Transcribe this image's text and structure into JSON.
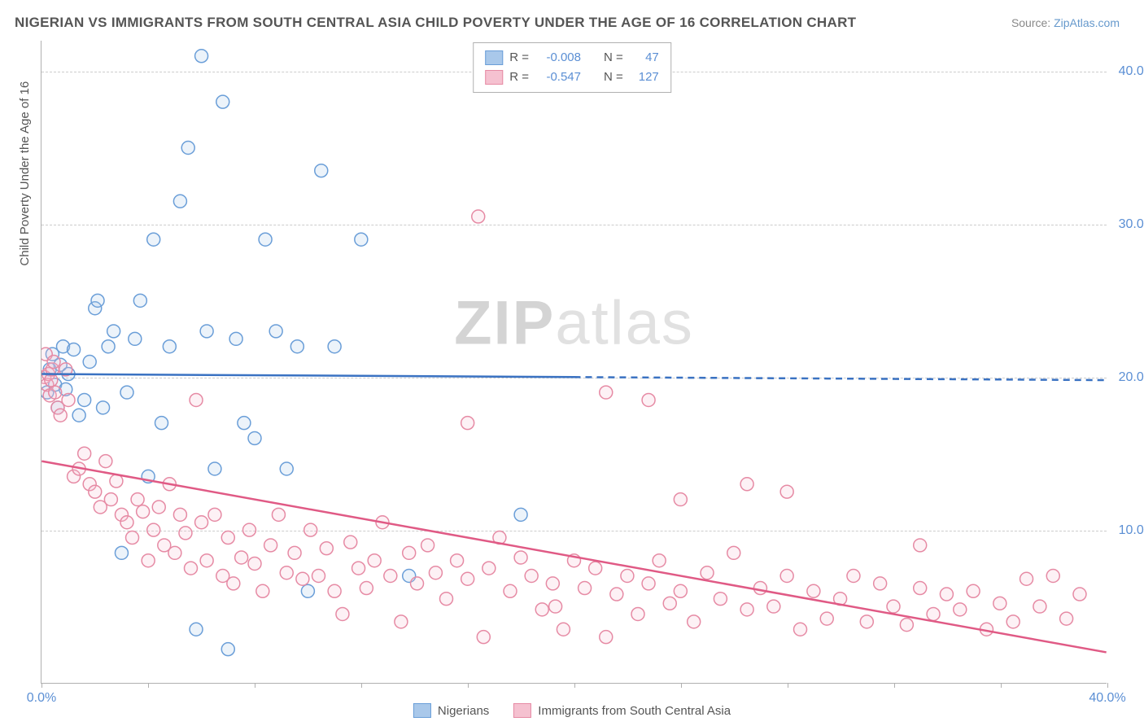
{
  "title": "NIGERIAN VS IMMIGRANTS FROM SOUTH CENTRAL ASIA CHILD POVERTY UNDER THE AGE OF 16 CORRELATION CHART",
  "source_label": "Source:",
  "source_name": "ZipAtlas.com",
  "y_axis_label": "Child Poverty Under the Age of 16",
  "watermark": {
    "zip": "ZIP",
    "rest": "atlas"
  },
  "chart": {
    "type": "scatter",
    "xlim": [
      0,
      40
    ],
    "ylim": [
      0,
      42
    ],
    "x_ticks": [
      0,
      4,
      8,
      12,
      16,
      20,
      24,
      28,
      32,
      36,
      40
    ],
    "x_tick_labels": {
      "0": "0.0%",
      "40": "40.0%"
    },
    "y_gridlines": [
      10,
      20,
      30,
      40
    ],
    "y_tick_labels": {
      "10": "10.0%",
      "20": "20.0%",
      "30": "30.0%",
      "40": "40.0%"
    },
    "background_color": "#ffffff",
    "grid_color": "#cccccc",
    "axis_color": "#b0b0b0",
    "tick_label_color": "#5b8fd4",
    "marker_radius": 8,
    "marker_stroke_width": 1.5,
    "marker_fill_opacity": 0.22,
    "series": [
      {
        "name": "Nigerians",
        "color_stroke": "#6a9ed8",
        "color_fill": "#a9c8ea",
        "r_label": "R =",
        "r_value": "-0.008",
        "n_label": "N =",
        "n_value": "47",
        "regression": {
          "color": "#3a72c2",
          "width": 2.5,
          "solid_x_range": [
            0,
            20
          ],
          "solid_y_range": [
            20.2,
            20.0
          ],
          "dashed_x_range": [
            20,
            40
          ],
          "dashed_y_range": [
            20.0,
            19.8
          ]
        },
        "points": [
          [
            0.2,
            19
          ],
          [
            0.3,
            20.5
          ],
          [
            0.4,
            21.5
          ],
          [
            0.5,
            19.5
          ],
          [
            0.6,
            18
          ],
          [
            0.7,
            20.8
          ],
          [
            0.8,
            22
          ],
          [
            0.9,
            19.2
          ],
          [
            1.0,
            20.2
          ],
          [
            1.2,
            21.8
          ],
          [
            1.4,
            17.5
          ],
          [
            1.6,
            18.5
          ],
          [
            1.8,
            21
          ],
          [
            2.0,
            24.5
          ],
          [
            2.1,
            25
          ],
          [
            2.3,
            18
          ],
          [
            2.5,
            22
          ],
          [
            2.7,
            23
          ],
          [
            3.0,
            8.5
          ],
          [
            3.2,
            19
          ],
          [
            3.5,
            22.5
          ],
          [
            3.7,
            25
          ],
          [
            4.0,
            13.5
          ],
          [
            4.2,
            29
          ],
          [
            4.5,
            17
          ],
          [
            4.8,
            22
          ],
          [
            5.2,
            31.5
          ],
          [
            5.5,
            35
          ],
          [
            5.8,
            3.5
          ],
          [
            6.0,
            41
          ],
          [
            6.2,
            23
          ],
          [
            6.5,
            14
          ],
          [
            6.8,
            38
          ],
          [
            7.0,
            2.2
          ],
          [
            7.3,
            22.5
          ],
          [
            7.6,
            17
          ],
          [
            8.0,
            16
          ],
          [
            8.4,
            29
          ],
          [
            8.8,
            23
          ],
          [
            9.2,
            14
          ],
          [
            9.6,
            22
          ],
          [
            10.0,
            6
          ],
          [
            10.5,
            33.5
          ],
          [
            11.0,
            22
          ],
          [
            12.0,
            29
          ],
          [
            13.8,
            7
          ],
          [
            18.0,
            11
          ]
        ]
      },
      {
        "name": "Immigrants from South Central Asia",
        "color_stroke": "#e68aa4",
        "color_fill": "#f5c1d0",
        "r_label": "R =",
        "r_value": "-0.547",
        "n_label": "N =",
        "n_value": "127",
        "regression": {
          "color": "#e05a85",
          "width": 2.5,
          "solid_x_range": [
            0,
            40
          ],
          "solid_y_range": [
            14.5,
            2.0
          ],
          "dashed_x_range": null,
          "dashed_y_range": null
        },
        "points": [
          [
            0.1,
            20
          ],
          [
            0.15,
            21.5
          ],
          [
            0.2,
            19.5
          ],
          [
            0.25,
            20.2
          ],
          [
            0.3,
            18.8
          ],
          [
            0.35,
            19.8
          ],
          [
            0.4,
            20.5
          ],
          [
            0.45,
            21
          ],
          [
            0.5,
            19
          ],
          [
            0.6,
            18
          ],
          [
            0.7,
            17.5
          ],
          [
            0.9,
            20.5
          ],
          [
            1.0,
            18.5
          ],
          [
            1.2,
            13.5
          ],
          [
            1.4,
            14
          ],
          [
            1.6,
            15
          ],
          [
            1.8,
            13
          ],
          [
            2.0,
            12.5
          ],
          [
            2.2,
            11.5
          ],
          [
            2.4,
            14.5
          ],
          [
            2.6,
            12
          ],
          [
            2.8,
            13.2
          ],
          [
            3.0,
            11
          ],
          [
            3.2,
            10.5
          ],
          [
            3.4,
            9.5
          ],
          [
            3.6,
            12
          ],
          [
            3.8,
            11.2
          ],
          [
            4.0,
            8
          ],
          [
            4.2,
            10
          ],
          [
            4.4,
            11.5
          ],
          [
            4.6,
            9
          ],
          [
            4.8,
            13
          ],
          [
            5.0,
            8.5
          ],
          [
            5.2,
            11
          ],
          [
            5.4,
            9.8
          ],
          [
            5.6,
            7.5
          ],
          [
            5.8,
            18.5
          ],
          [
            6.0,
            10.5
          ],
          [
            6.2,
            8
          ],
          [
            6.5,
            11
          ],
          [
            6.8,
            7
          ],
          [
            7.0,
            9.5
          ],
          [
            7.2,
            6.5
          ],
          [
            7.5,
            8.2
          ],
          [
            7.8,
            10
          ],
          [
            8.0,
            7.8
          ],
          [
            8.3,
            6
          ],
          [
            8.6,
            9
          ],
          [
            8.9,
            11
          ],
          [
            9.2,
            7.2
          ],
          [
            9.5,
            8.5
          ],
          [
            9.8,
            6.8
          ],
          [
            10.1,
            10
          ],
          [
            10.4,
            7
          ],
          [
            10.7,
            8.8
          ],
          [
            11.0,
            6
          ],
          [
            11.3,
            4.5
          ],
          [
            11.6,
            9.2
          ],
          [
            11.9,
            7.5
          ],
          [
            12.2,
            6.2
          ],
          [
            12.5,
            8
          ],
          [
            12.8,
            10.5
          ],
          [
            13.1,
            7
          ],
          [
            13.5,
            4
          ],
          [
            13.8,
            8.5
          ],
          [
            14.1,
            6.5
          ],
          [
            14.5,
            9
          ],
          [
            14.8,
            7.2
          ],
          [
            15.2,
            5.5
          ],
          [
            15.6,
            8
          ],
          [
            16.0,
            17
          ],
          [
            16.0,
            6.8
          ],
          [
            16.4,
            30.5
          ],
          [
            16.6,
            3
          ],
          [
            16.8,
            7.5
          ],
          [
            17.2,
            9.5
          ],
          [
            17.6,
            6
          ],
          [
            18.0,
            8.2
          ],
          [
            18.4,
            7
          ],
          [
            18.8,
            4.8
          ],
          [
            19.2,
            6.5
          ],
          [
            19.3,
            5
          ],
          [
            19.6,
            3.5
          ],
          [
            20.0,
            8
          ],
          [
            20.4,
            6.2
          ],
          [
            20.8,
            7.5
          ],
          [
            21.2,
            3
          ],
          [
            21.2,
            19
          ],
          [
            21.6,
            5.8
          ],
          [
            22.0,
            7
          ],
          [
            22.4,
            4.5
          ],
          [
            22.8,
            6.5
          ],
          [
            22.8,
            18.5
          ],
          [
            23.2,
            8
          ],
          [
            23.6,
            5.2
          ],
          [
            24.0,
            12
          ],
          [
            24.0,
            6
          ],
          [
            24.5,
            4
          ],
          [
            25.0,
            7.2
          ],
          [
            25.5,
            5.5
          ],
          [
            26.0,
            8.5
          ],
          [
            26.5,
            4.8
          ],
          [
            26.5,
            13
          ],
          [
            27.0,
            6.2
          ],
          [
            27.5,
            5
          ],
          [
            28.0,
            12.5
          ],
          [
            28.0,
            7
          ],
          [
            28.5,
            3.5
          ],
          [
            29.0,
            6
          ],
          [
            29.5,
            4.2
          ],
          [
            30.0,
            5.5
          ],
          [
            30.5,
            7
          ],
          [
            31.0,
            4
          ],
          [
            31.5,
            6.5
          ],
          [
            32.0,
            5
          ],
          [
            32.5,
            3.8
          ],
          [
            33.0,
            6.2
          ],
          [
            33.0,
            9
          ],
          [
            33.5,
            4.5
          ],
          [
            34.0,
            5.8
          ],
          [
            34.5,
            4.8
          ],
          [
            35.0,
            6
          ],
          [
            35.5,
            3.5
          ],
          [
            36.0,
            5.2
          ],
          [
            36.5,
            4
          ],
          [
            37.0,
            6.8
          ],
          [
            37.5,
            5
          ],
          [
            38.0,
            7
          ],
          [
            38.5,
            4.2
          ],
          [
            39.0,
            5.8
          ]
        ]
      }
    ]
  },
  "legend_bottom": [
    {
      "label": "Nigerians",
      "swatch_fill": "#a9c8ea",
      "swatch_stroke": "#6a9ed8"
    },
    {
      "label": "Immigrants from South Central Asia",
      "swatch_fill": "#f5c1d0",
      "swatch_stroke": "#e68aa4"
    }
  ]
}
